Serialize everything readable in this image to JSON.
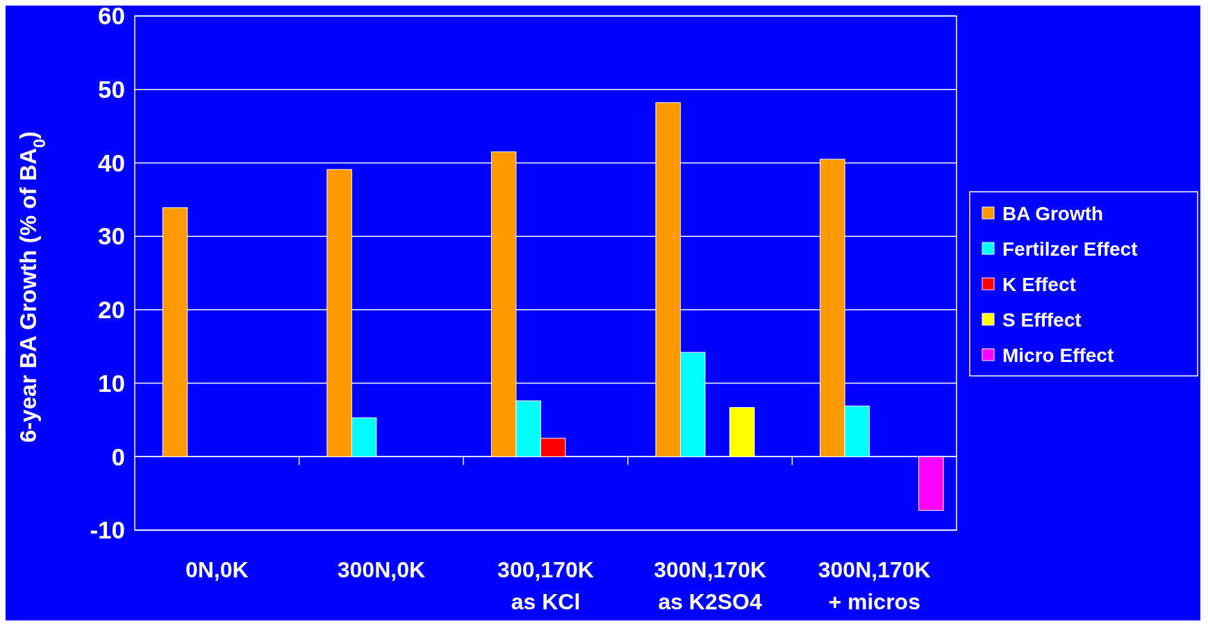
{
  "chart_data": {
    "type": "bar",
    "ylabel": "6-year  BA Growth (% of BA$_{0}$)",
    "categories": [
      "0N,0K",
      "300N,0K",
      "300,170K\nas KCl",
      "300N,170K\nas K2SO4",
      "300N,170K\n+ micros"
    ],
    "series": [
      {
        "name": "BA Growth",
        "color": "#ff9900",
        "values": [
          33.9,
          39.1,
          41.5,
          48.2,
          40.5
        ]
      },
      {
        "name": "Fertilzer Effect",
        "color": "#00ffff",
        "values": [
          null,
          5.3,
          7.6,
          14.2,
          6.9
        ]
      },
      {
        "name": "K Effect",
        "color": "#ff0000",
        "values": [
          null,
          null,
          2.5,
          null,
          null
        ]
      },
      {
        "name": "S Efffect",
        "color": "#ffff00",
        "values": [
          null,
          null,
          null,
          6.7,
          null
        ]
      },
      {
        "name": "Micro Effect",
        "color": "#ff00ff",
        "values": [
          null,
          null,
          null,
          null,
          -7.3
        ]
      }
    ],
    "ylim": [
      -10,
      60
    ],
    "yticks": [
      -10,
      0,
      10,
      20,
      30,
      40,
      50,
      60
    ],
    "grid": "y",
    "legend": "right"
  }
}
